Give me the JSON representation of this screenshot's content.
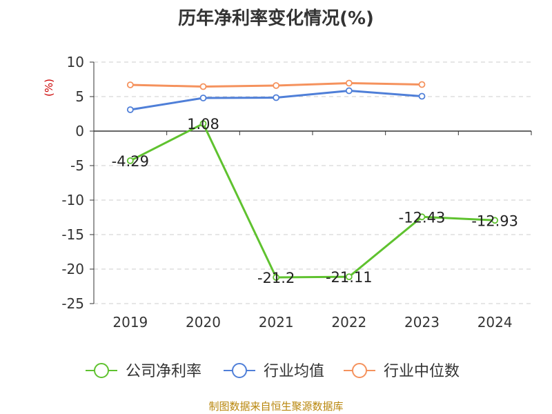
{
  "chart_data": {
    "type": "line",
    "title": "历年净利率变化情况(%)",
    "ylabel": "(%)",
    "categories": [
      "2019",
      "2020",
      "2021",
      "2022",
      "2023",
      "2024"
    ],
    "ylim": [
      -25,
      10
    ],
    "yticks": [
      10,
      5,
      0,
      -5,
      -10,
      -15,
      -20,
      -25
    ],
    "ytick_labels": [
      "10",
      "5",
      "0",
      "-5",
      "-10",
      "-15",
      "-20",
      "-25"
    ],
    "grid": "horizontal dashed",
    "legend": "bottom",
    "series": [
      {
        "name": "公司净利率",
        "color": "#5fc22f",
        "values": [
          -4.29,
          1.08,
          -21.2,
          -21.11,
          -12.43,
          -12.93
        ],
        "labels": [
          "-4.29",
          "1.08",
          "-21.2",
          "-21.11",
          "-12.43",
          "-12.93"
        ]
      },
      {
        "name": "行业均值",
        "color": "#4f7fd8",
        "values": [
          3.1,
          4.8,
          4.85,
          5.85,
          5.05,
          null
        ]
      },
      {
        "name": "行业中位数",
        "color": "#f5925d",
        "values": [
          6.7,
          6.45,
          6.6,
          6.95,
          6.75,
          null
        ]
      }
    ]
  },
  "footer": {
    "source": "制图数据来自恒生聚源数据库"
  }
}
